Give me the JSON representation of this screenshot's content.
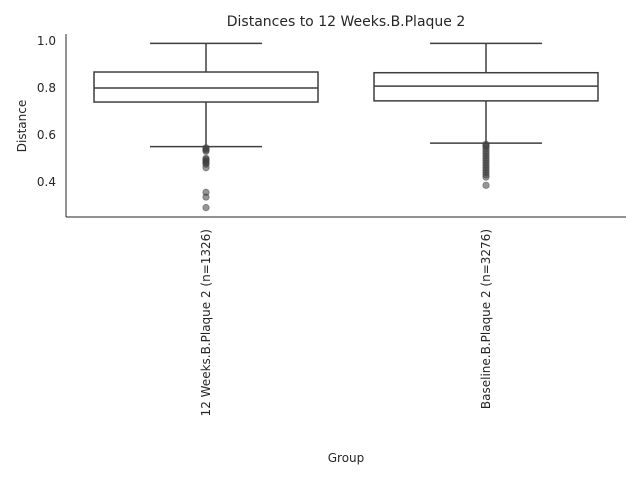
{
  "chart_data": {
    "type": "box",
    "title": "Distances to 12 Weeks.B.Plaque 2",
    "xlabel": "Group",
    "ylabel": "Distance",
    "ylim": [
      0.25,
      1.03
    ],
    "yticks": [
      0.4,
      0.6,
      0.8,
      1.0
    ],
    "ytick_labels": [
      "0.4",
      "0.6",
      "0.8",
      "1.0"
    ],
    "grid": false,
    "categories": [
      "12 Weeks.B.Plaque 2 (n=1326)",
      "Baseline.B.Plaque 2 (n=3276)"
    ],
    "boxes": [
      {
        "whisker_low": 0.55,
        "q1": 0.74,
        "median": 0.8,
        "q3": 0.868,
        "whisker_high": 0.99,
        "outliers": [
          0.545,
          0.54,
          0.535,
          0.53,
          0.5,
          0.495,
          0.49,
          0.485,
          0.48,
          0.475,
          0.46,
          0.355,
          0.335,
          0.29
        ]
      },
      {
        "whisker_low": 0.565,
        "q1": 0.745,
        "median": 0.808,
        "q3": 0.865,
        "whisker_high": 0.99,
        "outliers": [
          0.56,
          0.555,
          0.55,
          0.54,
          0.53,
          0.52,
          0.51,
          0.5,
          0.49,
          0.48,
          0.47,
          0.46,
          0.45,
          0.44,
          0.43,
          0.42,
          0.385
        ]
      }
    ],
    "colors": {
      "box_edge": "#3f3f3f",
      "box_fill": "#ffffff",
      "text": "#262626"
    }
  }
}
